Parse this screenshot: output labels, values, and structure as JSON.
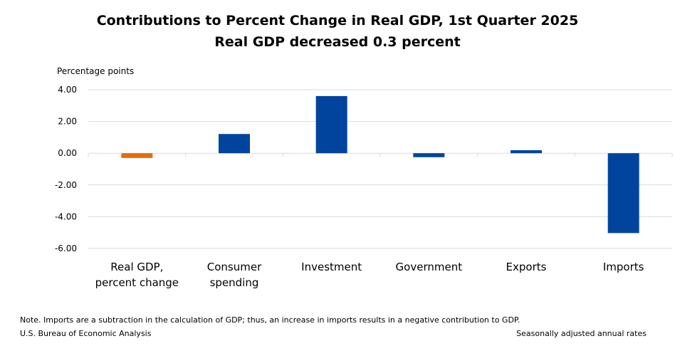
{
  "title": "Contributions to Percent Change in Real GDP, 1st Quarter 2025",
  "subtitle": "Real GDP decreased 0.3 percent",
  "note": "Note. Imports are a subtraction in the calculation of GDP; thus, an increase in imports results in a negative contribution to GDP.",
  "source": "U.S. Bureau of Economic Analysis",
  "rates_note": "Seasonally adjusted annual rates",
  "colors": {
    "gdp_bar": "#e46c0a",
    "component_bar": "#00449e",
    "grid": "#d9d9d9"
  },
  "chart_data": {
    "type": "bar",
    "ylabel": "Percentage points",
    "ylim": [
      -6,
      4
    ],
    "yticks": [
      "4.00",
      "2.00",
      "0.00",
      "-2.00",
      "-4.00",
      "-6.00"
    ],
    "ytick_values": [
      4,
      2,
      0,
      -2,
      -4,
      -6
    ],
    "grid": true,
    "categories": [
      [
        "Real GDP,",
        "percent change"
      ],
      [
        "Consumer",
        "spending"
      ],
      [
        "Investment"
      ],
      [
        "Government"
      ],
      [
        "Exports"
      ],
      [
        "Imports"
      ]
    ],
    "values": [
      -0.3,
      1.21,
      3.6,
      -0.25,
      0.19,
      -5.03
    ]
  }
}
